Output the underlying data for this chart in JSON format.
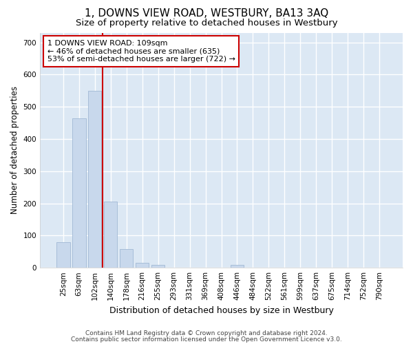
{
  "title": "1, DOWNS VIEW ROAD, WESTBURY, BA13 3AQ",
  "subtitle": "Size of property relative to detached houses in Westbury",
  "xlabel": "Distribution of detached houses by size in Westbury",
  "ylabel": "Number of detached properties",
  "categories": [
    "25sqm",
    "63sqm",
    "102sqm",
    "140sqm",
    "178sqm",
    "216sqm",
    "255sqm",
    "293sqm",
    "331sqm",
    "369sqm",
    "408sqm",
    "446sqm",
    "484sqm",
    "522sqm",
    "561sqm",
    "599sqm",
    "637sqm",
    "675sqm",
    "714sqm",
    "752sqm",
    "790sqm"
  ],
  "values": [
    80,
    465,
    550,
    205,
    58,
    16,
    8,
    0,
    0,
    0,
    0,
    8,
    0,
    0,
    0,
    0,
    0,
    0,
    0,
    0,
    0
  ],
  "bar_color": "#c8d8ec",
  "bar_edge_color": "#a0b8d4",
  "vline_x_index": 2.5,
  "vline_color": "#cc0000",
  "annotation_line1": "1 DOWNS VIEW ROAD: 109sqm",
  "annotation_line2": "← 46% of detached houses are smaller (635)",
  "annotation_line3": "53% of semi-detached houses are larger (722) →",
  "annotation_box_color": "#ffffff",
  "annotation_box_edge_color": "#cc0000",
  "ylim": [
    0,
    730
  ],
  "yticks": [
    0,
    100,
    200,
    300,
    400,
    500,
    600,
    700
  ],
  "footnote1": "Contains HM Land Registry data © Crown copyright and database right 2024.",
  "footnote2": "Contains public sector information licensed under the Open Government Licence v3.0.",
  "fig_bg_color": "#ffffff",
  "plot_bg_color": "#dce8f4",
  "grid_color": "#ffffff",
  "title_fontsize": 11,
  "subtitle_fontsize": 9.5,
  "ylabel_fontsize": 8.5,
  "xlabel_fontsize": 9,
  "tick_fontsize": 7.5,
  "annotation_fontsize": 8,
  "footnote_fontsize": 6.5
}
